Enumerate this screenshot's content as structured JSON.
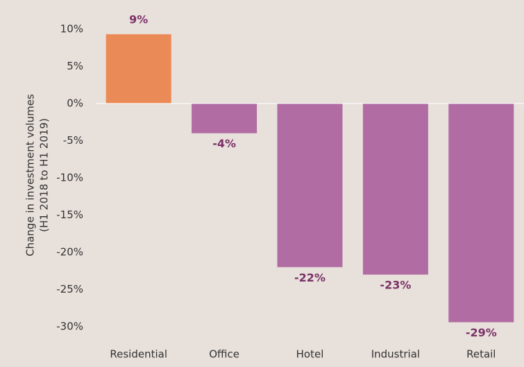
{
  "chart_data": {
    "type": "bar",
    "ylabel": [
      "Change in investment volumes",
      "(H1 2018 to H1 2019)"
    ],
    "categories": [
      "Residential",
      "Office",
      "Hotel",
      "Industrial",
      "Retail"
    ],
    "values": [
      9.3,
      -4,
      -22,
      -23,
      -29.4
    ],
    "value_labels": [
      "9%",
      "-4%",
      "-22%",
      "-23%",
      "-29%"
    ],
    "colors": [
      "#ea8a56",
      "#b06ca3",
      "#b06ca3",
      "#b06ca3",
      "#b06ca3"
    ],
    "label_color": "#7b3168",
    "ylim": [
      -31.4,
      13.9
    ],
    "yticks": [
      {
        "value": 10,
        "label": "10%"
      },
      {
        "value": 5,
        "label": "5%"
      },
      {
        "value": 0,
        "label": "0%"
      },
      {
        "value": -5,
        "label": "-5%"
      },
      {
        "value": -10,
        "label": "-10%"
      },
      {
        "value": -15,
        "label": "-15%"
      },
      {
        "value": -20,
        "label": "-20%"
      },
      {
        "value": -25,
        "label": "-25%"
      },
      {
        "value": -30,
        "label": "-30%"
      }
    ],
    "grid": false
  }
}
